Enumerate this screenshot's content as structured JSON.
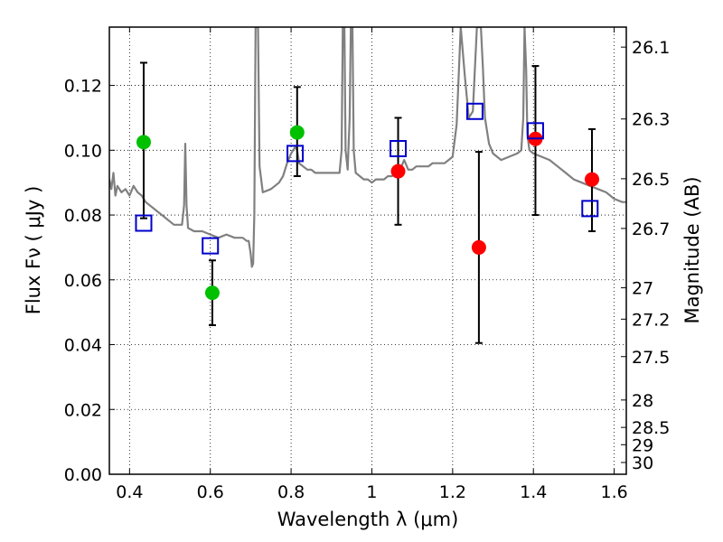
{
  "chart_data": {
    "type": "scatter",
    "xlabel": "Wavelength  λ (μm)",
    "ylabel": "Flux  Fν ( μJy )",
    "y2label": "Magnitude (AB)",
    "xlim": [
      0.35,
      1.63
    ],
    "ylim": [
      0.0,
      0.138
    ],
    "grid": true,
    "x_ticks": [
      "0.4",
      "0.6",
      "0.8",
      "1",
      "1.2",
      "1.4",
      "1.6"
    ],
    "y_ticks": [
      "0.00",
      "0.02",
      "0.04",
      "0.06",
      "0.08",
      "0.10",
      "0.12"
    ],
    "y2_ticks": [
      {
        "label": "26.1",
        "mag": 26.1
      },
      {
        "label": "26.3",
        "mag": 26.3
      },
      {
        "label": "26.5",
        "mag": 26.5
      },
      {
        "label": "26.7",
        "mag": 26.7
      },
      {
        "label": "27",
        "mag": 27.0
      },
      {
        "label": "27.2",
        "mag": 27.2
      },
      {
        "label": "27.5",
        "mag": 27.5
      },
      {
        "label": "28",
        "mag": 28.0
      },
      {
        "label": "28.5",
        "mag": 28.5
      },
      {
        "label": "29",
        "mag": 29.0
      },
      {
        "label": "30",
        "mag": 30.0
      }
    ],
    "series": [
      {
        "kind": "line",
        "color": "#808080",
        "points": [
          [
            0.35,
            0.091
          ],
          [
            0.355,
            0.088
          ],
          [
            0.36,
            0.093
          ],
          [
            0.365,
            0.086
          ],
          [
            0.37,
            0.089
          ],
          [
            0.38,
            0.087
          ],
          [
            0.39,
            0.088
          ],
          [
            0.4,
            0.086
          ],
          [
            0.41,
            0.089
          ],
          [
            0.42,
            0.087
          ],
          [
            0.43,
            0.086
          ],
          [
            0.44,
            0.084
          ],
          [
            0.45,
            0.083
          ],
          [
            0.46,
            0.082
          ],
          [
            0.47,
            0.081
          ],
          [
            0.48,
            0.08
          ],
          [
            0.49,
            0.079
          ],
          [
            0.5,
            0.078
          ],
          [
            0.51,
            0.077
          ],
          [
            0.52,
            0.077
          ],
          [
            0.53,
            0.077
          ],
          [
            0.535,
            0.083
          ],
          [
            0.538,
            0.102
          ],
          [
            0.541,
            0.083
          ],
          [
            0.545,
            0.076
          ],
          [
            0.56,
            0.075
          ],
          [
            0.58,
            0.075
          ],
          [
            0.6,
            0.074
          ],
          [
            0.62,
            0.073
          ],
          [
            0.64,
            0.074
          ],
          [
            0.66,
            0.073
          ],
          [
            0.68,
            0.073
          ],
          [
            0.69,
            0.072
          ],
          [
            0.695,
            0.072
          ],
          [
            0.7,
            0.068
          ],
          [
            0.703,
            0.064
          ],
          [
            0.706,
            0.065
          ],
          [
            0.709,
            0.08
          ],
          [
            0.712,
            0.138
          ],
          [
            0.718,
            0.138
          ],
          [
            0.722,
            0.095
          ],
          [
            0.73,
            0.087
          ],
          [
            0.75,
            0.088
          ],
          [
            0.76,
            0.089
          ],
          [
            0.77,
            0.09
          ],
          [
            0.78,
            0.092
          ],
          [
            0.79,
            0.096
          ],
          [
            0.8,
            0.099
          ],
          [
            0.81,
            0.101
          ],
          [
            0.815,
            0.1
          ],
          [
            0.82,
            0.096
          ],
          [
            0.83,
            0.095
          ],
          [
            0.84,
            0.094
          ],
          [
            0.85,
            0.094
          ],
          [
            0.86,
            0.093
          ],
          [
            0.87,
            0.093
          ],
          [
            0.88,
            0.093
          ],
          [
            0.89,
            0.093
          ],
          [
            0.9,
            0.093
          ],
          [
            0.91,
            0.093
          ],
          [
            0.92,
            0.093
          ],
          [
            0.925,
            0.1
          ],
          [
            0.928,
            0.138
          ],
          [
            0.932,
            0.138
          ],
          [
            0.935,
            0.1
          ],
          [
            0.94,
            0.094
          ],
          [
            0.945,
            0.11
          ],
          [
            0.948,
            0.138
          ],
          [
            0.952,
            0.138
          ],
          [
            0.955,
            0.1
          ],
          [
            0.96,
            0.093
          ],
          [
            0.97,
            0.092
          ],
          [
            0.98,
            0.091
          ],
          [
            0.99,
            0.091
          ],
          [
            1.0,
            0.09
          ],
          [
            1.01,
            0.091
          ],
          [
            1.02,
            0.091
          ],
          [
            1.03,
            0.091
          ],
          [
            1.04,
            0.092
          ],
          [
            1.05,
            0.092
          ],
          [
            1.06,
            0.093
          ],
          [
            1.07,
            0.094
          ],
          [
            1.08,
            0.097
          ],
          [
            1.09,
            0.094
          ],
          [
            1.1,
            0.094
          ],
          [
            1.11,
            0.095
          ],
          [
            1.12,
            0.095
          ],
          [
            1.13,
            0.095
          ],
          [
            1.14,
            0.095
          ],
          [
            1.15,
            0.096
          ],
          [
            1.16,
            0.096
          ],
          [
            1.17,
            0.096
          ],
          [
            1.18,
            0.096
          ],
          [
            1.19,
            0.097
          ],
          [
            1.2,
            0.098
          ],
          [
            1.21,
            0.108
          ],
          [
            1.22,
            0.138
          ],
          [
            1.23,
            0.123
          ],
          [
            1.24,
            0.11
          ],
          [
            1.25,
            0.112
          ],
          [
            1.26,
            0.138
          ],
          [
            1.27,
            0.138
          ],
          [
            1.275,
            0.125
          ],
          [
            1.28,
            0.11
          ],
          [
            1.29,
            0.102
          ],
          [
            1.3,
            0.099
          ],
          [
            1.32,
            0.097
          ],
          [
            1.34,
            0.098
          ],
          [
            1.36,
            0.099
          ],
          [
            1.37,
            0.1
          ],
          [
            1.375,
            0.11
          ],
          [
            1.378,
            0.138
          ],
          [
            1.382,
            0.125
          ],
          [
            1.385,
            0.105
          ],
          [
            1.39,
            0.1
          ],
          [
            1.4,
            0.099
          ],
          [
            1.42,
            0.098
          ],
          [
            1.44,
            0.097
          ],
          [
            1.46,
            0.095
          ],
          [
            1.48,
            0.093
          ],
          [
            1.5,
            0.091
          ],
          [
            1.52,
            0.09
          ],
          [
            1.54,
            0.089
          ],
          [
            1.56,
            0.088
          ],
          [
            1.58,
            0.087
          ],
          [
            1.6,
            0.085
          ],
          [
            1.62,
            0.084
          ],
          [
            1.63,
            0.084
          ]
        ]
      },
      {
        "kind": "markers",
        "marker": "circle",
        "color": "#00c000",
        "points": [
          {
            "x": 0.435,
            "y": 0.1025,
            "yerr_lo": 0.079,
            "yerr_hi": 0.127
          },
          {
            "x": 0.605,
            "y": 0.056,
            "yerr_lo": 0.046,
            "yerr_hi": 0.066
          },
          {
            "x": 0.815,
            "y": 0.1055,
            "yerr_lo": 0.092,
            "yerr_hi": 0.1195
          }
        ]
      },
      {
        "kind": "markers",
        "marker": "circle",
        "color": "#ff0000",
        "points": [
          {
            "x": 1.065,
            "y": 0.0935,
            "yerr_lo": 0.077,
            "yerr_hi": 0.11
          },
          {
            "x": 1.265,
            "y": 0.07,
            "yerr_lo": 0.0405,
            "yerr_hi": 0.0995
          },
          {
            "x": 1.405,
            "y": 0.1035,
            "yerr_lo": 0.08,
            "yerr_hi": 0.126
          },
          {
            "x": 1.545,
            "y": 0.091,
            "yerr_lo": 0.075,
            "yerr_hi": 0.1065
          }
        ]
      },
      {
        "kind": "markers",
        "marker": "open-square",
        "color": "#0000cc",
        "points": [
          {
            "x": 0.435,
            "y": 0.0775
          },
          {
            "x": 0.6,
            "y": 0.0705
          },
          {
            "x": 0.81,
            "y": 0.099
          },
          {
            "x": 1.065,
            "y": 0.1005
          },
          {
            "x": 1.255,
            "y": 0.112
          },
          {
            "x": 1.405,
            "y": 0.106
          },
          {
            "x": 1.54,
            "y": 0.082
          }
        ]
      }
    ]
  }
}
